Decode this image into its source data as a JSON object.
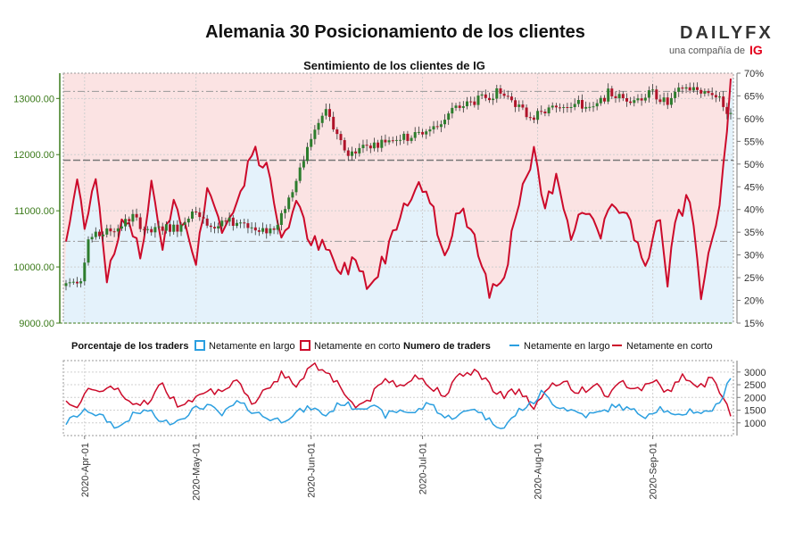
{
  "title": "Alemania 30 Posicionamiento de los clientes",
  "brand": {
    "name": "DAILYFX",
    "tagline": "una compañía de",
    "partner": "IG",
    "color_dark": "#333333",
    "color_red": "#e3001b"
  },
  "chart_data": {
    "type": "line",
    "subtitle": "Sentimiento de los clientes de IG",
    "price_axis": {
      "ticks": [
        "9000.00",
        "10000.00",
        "11000.00",
        "12000.00",
        "13000.00"
      ],
      "range": [
        9000,
        13450
      ]
    },
    "pct_axis": {
      "ticks": [
        "15%",
        "20%",
        "25%",
        "30%",
        "35%",
        "40%",
        "45%",
        "50%",
        "55%",
        "60%",
        "65%",
        "70%"
      ],
      "range": [
        15,
        70
      ]
    },
    "count_axis": {
      "ticks": [
        "1000",
        "1500",
        "2000",
        "2500",
        "3000"
      ],
      "range": [
        500,
        3450
      ]
    },
    "date_labels": [
      "2020-Apr-01",
      "2020-May-01",
      "2020-Jun-01",
      "2020-Jul-01",
      "2020-Aug-01",
      "2020-Sep-01"
    ],
    "date_positions": [
      5,
      35,
      66,
      96,
      127,
      158
    ],
    "days": 180,
    "reference_lines": {
      "price": 11900,
      "pct_upper": 66,
      "pct_lower": 33
    },
    "legend": {
      "pct_title": "Porcentaje de los traders",
      "pct_long": "Netamente en largo",
      "pct_short": "Netamente en corto",
      "count_title": "Numero de traders",
      "count_long": "Netamente en largo",
      "count_short": "Netamente en corto"
    },
    "colors": {
      "long": "#2b9fe0",
      "short": "#cc0a2a",
      "up": "#2d7d2d",
      "down": "#b0142a",
      "short_zone": "#fbe3e3",
      "long_zone": "#e4f2fb",
      "axis_green": "#3b7a1a",
      "grid": "#cfcfcf"
    },
    "price_keypoints": [
      [
        0,
        9700
      ],
      [
        4,
        9800
      ],
      [
        6,
        10500
      ],
      [
        10,
        10600
      ],
      [
        14,
        10700
      ],
      [
        18,
        10900
      ],
      [
        22,
        10600
      ],
      [
        26,
        10700
      ],
      [
        30,
        10700
      ],
      [
        34,
        11000
      ],
      [
        37,
        10800
      ],
      [
        40,
        10700
      ],
      [
        44,
        10800
      ],
      [
        48,
        10800
      ],
      [
        52,
        10600
      ],
      [
        56,
        10700
      ],
      [
        60,
        11200
      ],
      [
        63,
        11700
      ],
      [
        66,
        12300
      ],
      [
        70,
        12800
      ],
      [
        73,
        12300
      ],
      [
        76,
        12000
      ],
      [
        80,
        12150
      ],
      [
        84,
        12200
      ],
      [
        88,
        12300
      ],
      [
        92,
        12300
      ],
      [
        96,
        12400
      ],
      [
        100,
        12500
      ],
      [
        104,
        12800
      ],
      [
        108,
        12900
      ],
      [
        112,
        13000
      ],
      [
        116,
        13100
      ],
      [
        120,
        13000
      ],
      [
        124,
        12700
      ],
      [
        127,
        12700
      ],
      [
        130,
        12800
      ],
      [
        134,
        12900
      ],
      [
        138,
        12900
      ],
      [
        142,
        12800
      ],
      [
        146,
        13100
      ],
      [
        150,
        13000
      ],
      [
        154,
        13000
      ],
      [
        158,
        13100
      ],
      [
        162,
        12900
      ],
      [
        166,
        13200
      ],
      [
        170,
        13150
      ],
      [
        174,
        13100
      ],
      [
        177,
        12900
      ],
      [
        179,
        12700
      ]
    ],
    "pct_short_keypoints": [
      [
        0,
        33
      ],
      [
        3,
        46
      ],
      [
        5,
        37
      ],
      [
        8,
        48
      ],
      [
        11,
        25
      ],
      [
        14,
        35
      ],
      [
        17,
        38
      ],
      [
        20,
        29
      ],
      [
        23,
        46
      ],
      [
        26,
        33
      ],
      [
        29,
        42
      ],
      [
        32,
        36
      ],
      [
        35,
        28
      ],
      [
        38,
        46
      ],
      [
        42,
        35
      ],
      [
        46,
        41
      ],
      [
        50,
        53
      ],
      [
        54,
        49
      ],
      [
        58,
        34
      ],
      [
        62,
        41
      ],
      [
        66,
        33
      ],
      [
        70,
        31
      ],
      [
        74,
        26
      ],
      [
        78,
        29
      ],
      [
        82,
        23
      ],
      [
        86,
        30
      ],
      [
        90,
        40
      ],
      [
        94,
        45
      ],
      [
        98,
        43
      ],
      [
        102,
        29
      ],
      [
        106,
        40
      ],
      [
        110,
        35
      ],
      [
        114,
        22
      ],
      [
        118,
        26
      ],
      [
        122,
        41
      ],
      [
        126,
        52
      ],
      [
        129,
        40
      ],
      [
        132,
        48
      ],
      [
        136,
        35
      ],
      [
        140,
        40
      ],
      [
        144,
        34
      ],
      [
        148,
        42
      ],
      [
        152,
        37
      ],
      [
        156,
        28
      ],
      [
        160,
        38
      ],
      [
        162,
        23
      ],
      [
        164,
        38
      ],
      [
        168,
        43
      ],
      [
        171,
        20
      ],
      [
        174,
        33
      ],
      [
        176,
        40
      ],
      [
        178,
        56
      ],
      [
        179,
        67
      ]
    ],
    "traders_short_keypoints": [
      [
        0,
        2000
      ],
      [
        3,
        1600
      ],
      [
        6,
        2200
      ],
      [
        10,
        2400
      ],
      [
        14,
        2300
      ],
      [
        18,
        1600
      ],
      [
        22,
        1900
      ],
      [
        26,
        2500
      ],
      [
        30,
        1700
      ],
      [
        34,
        2000
      ],
      [
        38,
        2400
      ],
      [
        42,
        2100
      ],
      [
        46,
        2600
      ],
      [
        50,
        1800
      ],
      [
        54,
        2400
      ],
      [
        58,
        2900
      ],
      [
        62,
        2500
      ],
      [
        66,
        3300
      ],
      [
        70,
        3100
      ],
      [
        74,
        2400
      ],
      [
        78,
        1600
      ],
      [
        82,
        2000
      ],
      [
        86,
        2700
      ],
      [
        90,
        2500
      ],
      [
        94,
        2900
      ],
      [
        98,
        2400
      ],
      [
        102,
        2200
      ],
      [
        106,
        2800
      ],
      [
        110,
        3100
      ],
      [
        114,
        2500
      ],
      [
        118,
        2100
      ],
      [
        122,
        2300
      ],
      [
        126,
        1600
      ],
      [
        130,
        2300
      ],
      [
        134,
        2700
      ],
      [
        138,
        2200
      ],
      [
        142,
        2500
      ],
      [
        146,
        2100
      ],
      [
        150,
        2600
      ],
      [
        154,
        2300
      ],
      [
        158,
        2700
      ],
      [
        162,
        2200
      ],
      [
        166,
        2900
      ],
      [
        170,
        2300
      ],
      [
        174,
        2800
      ],
      [
        177,
        2100
      ],
      [
        179,
        1400
      ]
    ],
    "traders_long_keypoints": [
      [
        0,
        1000
      ],
      [
        3,
        1300
      ],
      [
        6,
        1500
      ],
      [
        10,
        1200
      ],
      [
        14,
        800
      ],
      [
        18,
        1300
      ],
      [
        22,
        1500
      ],
      [
        26,
        1000
      ],
      [
        30,
        1100
      ],
      [
        34,
        1500
      ],
      [
        38,
        1700
      ],
      [
        42,
        1300
      ],
      [
        46,
        1800
      ],
      [
        50,
        1500
      ],
      [
        54,
        1200
      ],
      [
        58,
        1100
      ],
      [
        62,
        1400
      ],
      [
        66,
        1600
      ],
      [
        70,
        1300
      ],
      [
        74,
        1800
      ],
      [
        78,
        1600
      ],
      [
        82,
        1700
      ],
      [
        86,
        1300
      ],
      [
        90,
        1500
      ],
      [
        94,
        1400
      ],
      [
        98,
        1800
      ],
      [
        102,
        1200
      ],
      [
        106,
        1300
      ],
      [
        110,
        1600
      ],
      [
        114,
        1100
      ],
      [
        118,
        800
      ],
      [
        122,
        1500
      ],
      [
        126,
        1800
      ],
      [
        128,
        2200
      ],
      [
        132,
        1700
      ],
      [
        136,
        1500
      ],
      [
        140,
        1300
      ],
      [
        144,
        1400
      ],
      [
        148,
        1700
      ],
      [
        152,
        1500
      ],
      [
        156,
        1300
      ],
      [
        160,
        1600
      ],
      [
        164,
        1200
      ],
      [
        168,
        1500
      ],
      [
        172,
        1400
      ],
      [
        176,
        1700
      ],
      [
        178,
        2600
      ],
      [
        179,
        2800
      ]
    ]
  }
}
